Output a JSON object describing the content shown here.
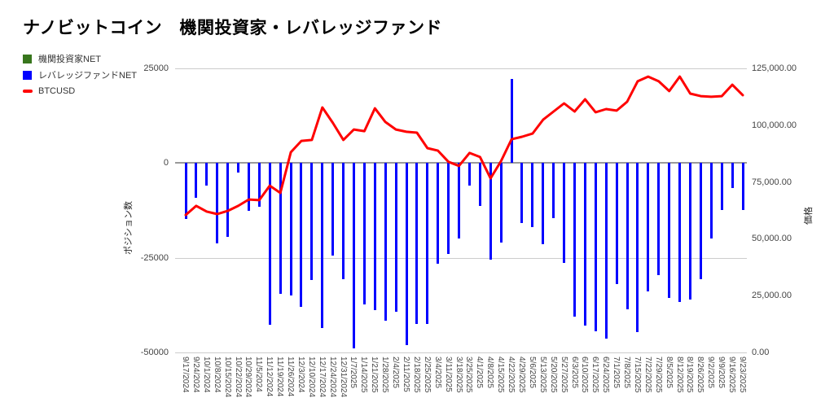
{
  "title": "ナノビットコイン　機関投資家・レバレッジファンド",
  "legend": {
    "items": [
      {
        "label": "機関投資家NET",
        "swatch": "square",
        "color": "#38761d"
      },
      {
        "label": "レバレッジファンドNET",
        "swatch": "square",
        "color": "#0000ff"
      },
      {
        "label": "BTCUSD",
        "swatch": "line",
        "color": "#ff0000"
      }
    ]
  },
  "axes": {
    "left": {
      "title": "ポジション数",
      "ticks": [
        "25000",
        "0",
        "-25000",
        "-50000"
      ],
      "range": [
        -50000,
        25000
      ]
    },
    "right": {
      "title": "価格",
      "ticks": [
        "125,000.00",
        "100,000.00",
        "75,000.00",
        "50,000.00",
        "25,000.00",
        "0.00"
      ],
      "range": [
        0,
        125000
      ]
    },
    "x": {
      "tick_rotation_deg": 90
    }
  },
  "colors": {
    "institutional_green": "#38761d",
    "leverage_blue": "#0000ff",
    "btcusd_red": "#ff0000",
    "grid": "#cccccc",
    "zero_line": "#999999",
    "axis_text": "#444444",
    "title_text": "#000000",
    "background": "#ffffff"
  },
  "chart_data": {
    "type": "bar",
    "subtype": "combo-bar-line",
    "title": "ナノビットコイン　機関投資家・レバレッジファンド",
    "xlabel": "",
    "ylabel_left": "ポジション数",
    "ylabel_right": "価格",
    "left_axis_range": [
      -50000,
      25000
    ],
    "right_axis_range": [
      0,
      125000
    ],
    "grid": true,
    "legend_position": "top-left",
    "categories": [
      "9/17/2024",
      "9/24/2024",
      "10/1/2024",
      "10/8/2024",
      "10/15/2024",
      "10/22/2024",
      "10/29/2024",
      "11/5/2024",
      "11/12/2024",
      "11/19/2024",
      "11/26/2024",
      "12/3/2024",
      "12/10/2024",
      "12/17/2024",
      "12/24/2024",
      "12/31/2024",
      "1/7/2025",
      "1/14/2025",
      "1/21/2025",
      "1/28/2025",
      "2/4/2025",
      "2/11/2025",
      "2/18/2025",
      "2/25/2025",
      "3/4/2025",
      "3/11/2025",
      "3/18/2025",
      "3/25/2025",
      "4/1/2025",
      "4/8/2025",
      "4/15/2025",
      "4/22/2025",
      "4/29/2025",
      "5/6/2025",
      "5/13/2025",
      "5/20/2025",
      "5/27/2025",
      "6/3/2025",
      "6/10/2025",
      "6/17/2025",
      "6/24/2025",
      "7/1/2025",
      "7/8/2025",
      "7/15/2025",
      "7/22/2025",
      "7/29/2025",
      "8/5/2025",
      "8/12/2025",
      "8/19/2025",
      "8/26/2025",
      "9/2/2025",
      "9/9/2025",
      "9/16/2025",
      "9/23/2025"
    ],
    "series": [
      {
        "name": "機関投資家NET",
        "type": "bar",
        "axis": "left",
        "color": "#38761d",
        "values": [
          0,
          0,
          0,
          0,
          0,
          0,
          0,
          0,
          0,
          0,
          0,
          0,
          0,
          0,
          0,
          0,
          0,
          0,
          0,
          0,
          0,
          0,
          0,
          0,
          0,
          0,
          0,
          0,
          0,
          0,
          0,
          0,
          0,
          0,
          0,
          0,
          0,
          0,
          0,
          0,
          0,
          0,
          0,
          0,
          0,
          0,
          0,
          0,
          0,
          0,
          0,
          0,
          0,
          0
        ]
      },
      {
        "name": "レバレッジファンドNET",
        "type": "bar",
        "axis": "left",
        "color": "#0000ff",
        "values": [
          -14700,
          -9100,
          -5900,
          -21200,
          -19400,
          -2500,
          -12600,
          -11500,
          -42700,
          -34500,
          -34900,
          -37900,
          -30800,
          -43500,
          -24400,
          -30600,
          -48900,
          -37300,
          -38800,
          -41600,
          -39200,
          -48000,
          -42400,
          -42400,
          -26500,
          -24000,
          -19900,
          -5900,
          -11300,
          -25400,
          -20900,
          22300,
          -15800,
          -16900,
          -21400,
          -14500,
          -26300,
          -40500,
          -42900,
          -44400,
          -46300,
          -31900,
          -38600,
          -44600,
          -33900,
          -29500,
          -35600,
          -36700,
          -36000,
          -30600,
          -19900,
          -12400,
          -6600,
          -12400
        ]
      },
      {
        "name": "BTCUSD",
        "type": "line",
        "axis": "right",
        "color": "#ff0000",
        "values": [
          60500,
          64500,
          62000,
          60900,
          62300,
          64500,
          67300,
          67000,
          73400,
          70200,
          88100,
          93100,
          93500,
          107800,
          101000,
          93500,
          98100,
          97400,
          107400,
          101400,
          98100,
          97100,
          96700,
          89900,
          88800,
          83900,
          82100,
          87800,
          86000,
          76600,
          84200,
          93800,
          94900,
          96300,
          102400,
          106000,
          109600,
          106000,
          111400,
          105700,
          107100,
          106400,
          110300,
          119300,
          121400,
          119300,
          115000,
          121400,
          113900,
          112800,
          112500,
          112800,
          117800,
          113200
        ]
      }
    ]
  }
}
